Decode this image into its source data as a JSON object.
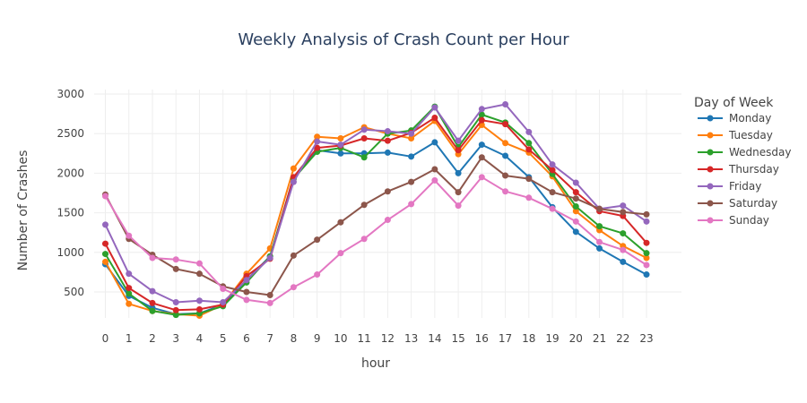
{
  "chart_data": {
    "type": "line",
    "title": "Weekly Analysis of Crash Count per Hour",
    "xlabel": "hour",
    "ylabel": "Number of Crashes",
    "legend_title": "Day of Week",
    "legend_placement": "right",
    "grid": true,
    "xlim": [
      0,
      23
    ],
    "ylim": [
      0,
      3000
    ],
    "x": [
      0,
      1,
      2,
      3,
      4,
      5,
      6,
      7,
      8,
      9,
      10,
      11,
      12,
      13,
      14,
      15,
      16,
      17,
      18,
      19,
      20,
      21,
      22,
      23
    ],
    "y_ticks": [
      500,
      1000,
      1500,
      2000,
      2500,
      3000
    ],
    "series": [
      {
        "name": "Monday",
        "color": "#1f77b4",
        "values": [
          850,
          450,
          300,
          220,
          230,
          340,
          650,
          950,
          1950,
          2290,
          2250,
          2250,
          2260,
          2210,
          2390,
          2000,
          2360,
          2220,
          1950,
          1570,
          1260,
          1050,
          880,
          720
        ]
      },
      {
        "name": "Tuesday",
        "color": "#ff7f0e",
        "values": [
          880,
          350,
          260,
          220,
          200,
          340,
          730,
          1050,
          2060,
          2460,
          2440,
          2580,
          2500,
          2440,
          2660,
          2240,
          2610,
          2380,
          2260,
          1960,
          1520,
          1280,
          1080,
          930
        ]
      },
      {
        "name": "Wednesday",
        "color": "#2ca02c",
        "values": [
          980,
          480,
          260,
          210,
          230,
          320,
          620,
          950,
          1930,
          2270,
          2320,
          2200,
          2500,
          2540,
          2840,
          2330,
          2740,
          2640,
          2380,
          1990,
          1580,
          1330,
          1240,
          990
        ]
      },
      {
        "name": "Thursday",
        "color": "#d62728",
        "values": [
          1110,
          550,
          360,
          270,
          280,
          340,
          700,
          920,
          1950,
          2320,
          2350,
          2440,
          2410,
          2510,
          2700,
          2290,
          2670,
          2620,
          2300,
          2040,
          1760,
          1520,
          1460,
          1120
        ]
      },
      {
        "name": "Friday",
        "color": "#9467bd",
        "values": [
          1350,
          730,
          510,
          370,
          390,
          370,
          650,
          930,
          1890,
          2400,
          2360,
          2550,
          2530,
          2500,
          2830,
          2410,
          2810,
          2870,
          2520,
          2110,
          1880,
          1550,
          1590,
          1390
        ]
      },
      {
        "name": "Saturday",
        "color": "#8c564b",
        "values": [
          1730,
          1170,
          970,
          790,
          730,
          570,
          500,
          460,
          960,
          1160,
          1380,
          1600,
          1770,
          1890,
          2050,
          1760,
          2200,
          1970,
          1930,
          1760,
          1680,
          1550,
          1510,
          1480
        ]
      },
      {
        "name": "Sunday",
        "color": "#e377c2",
        "values": [
          1710,
          1210,
          930,
          910,
          860,
          540,
          400,
          360,
          560,
          720,
          990,
          1170,
          1410,
          1610,
          1910,
          1590,
          1950,
          1770,
          1690,
          1550,
          1390,
          1130,
          1030,
          840
        ]
      }
    ]
  }
}
